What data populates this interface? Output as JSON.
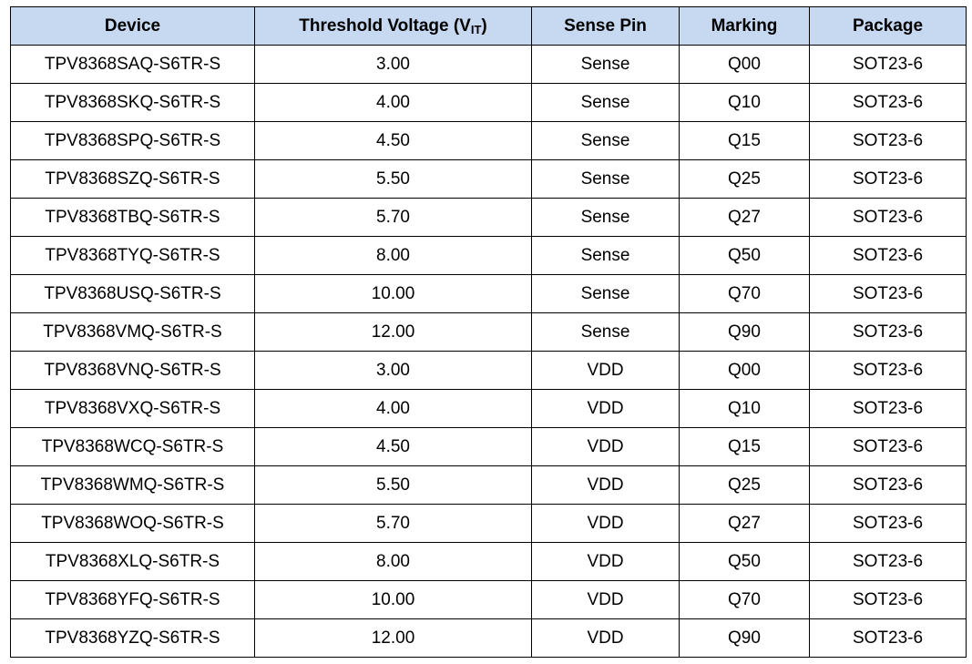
{
  "table": {
    "header": [
      "Device",
      {
        "text": "Threshold Voltage (V",
        "sub": "IT",
        "tail": ")"
      },
      "Sense Pin",
      "Marking",
      "Package"
    ],
    "rows": [
      [
        "TPV8368SAQ-S6TR-S",
        "3.00",
        "Sense",
        "Q00",
        "SOT23-6"
      ],
      [
        "TPV8368SKQ-S6TR-S",
        "4.00",
        "Sense",
        "Q10",
        "SOT23-6"
      ],
      [
        "TPV8368SPQ-S6TR-S",
        "4.50",
        "Sense",
        "Q15",
        "SOT23-6"
      ],
      [
        "TPV8368SZQ-S6TR-S",
        "5.50",
        "Sense",
        "Q25",
        "SOT23-6"
      ],
      [
        "TPV8368TBQ-S6TR-S",
        "5.70",
        "Sense",
        "Q27",
        "SOT23-6"
      ],
      [
        "TPV8368TYQ-S6TR-S",
        "8.00",
        "Sense",
        "Q50",
        "SOT23-6"
      ],
      [
        "TPV8368USQ-S6TR-S",
        "10.00",
        "Sense",
        "Q70",
        "SOT23-6"
      ],
      [
        "TPV8368VMQ-S6TR-S",
        "12.00",
        "Sense",
        "Q90",
        "SOT23-6"
      ],
      [
        "TPV8368VNQ-S6TR-S",
        "3.00",
        "VDD",
        "Q00",
        "SOT23-6"
      ],
      [
        "TPV8368VXQ-S6TR-S",
        "4.00",
        "VDD",
        "Q10",
        "SOT23-6"
      ],
      [
        "TPV8368WCQ-S6TR-S",
        "4.50",
        "VDD",
        "Q15",
        "SOT23-6"
      ],
      [
        "TPV8368WMQ-S6TR-S",
        "5.50",
        "VDD",
        "Q25",
        "SOT23-6"
      ],
      [
        "TPV8368WOQ-S6TR-S",
        "5.70",
        "VDD",
        "Q27",
        "SOT23-6"
      ],
      [
        "TPV8368XLQ-S6TR-S",
        "8.00",
        "VDD",
        "Q50",
        "SOT23-6"
      ],
      [
        "TPV8368YFQ-S6TR-S",
        "10.00",
        "VDD",
        "Q70",
        "SOT23-6"
      ],
      [
        "TPV8368YZQ-S6TR-S",
        "12.00",
        "VDD",
        "Q90",
        "SOT23-6"
      ]
    ]
  }
}
